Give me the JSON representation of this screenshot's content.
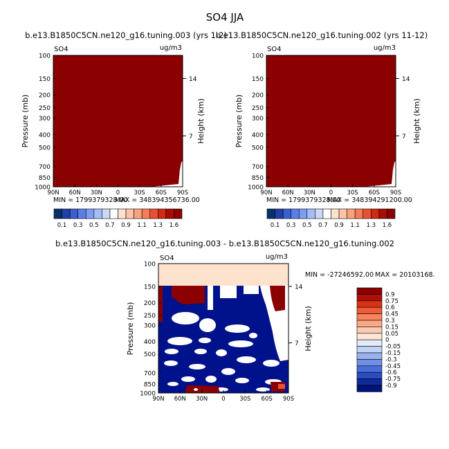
{
  "figure": {
    "title": "SO4 JJA"
  },
  "chart_data": [
    {
      "type": "heatmap",
      "title": "b.e13.B1850C5CN.ne120_g16.tuning.003 (yrs 1-2)",
      "left_label": "SO4",
      "right_label": "ug/m3",
      "xlabel": "",
      "ylabel": "Pressure (mb)",
      "ylabel_right": "Height (km)",
      "x_ticks": [
        "90N",
        "60N",
        "30N",
        "0",
        "30S",
        "60S",
        "90S"
      ],
      "y_ticks": [
        "100",
        "150",
        "200",
        "250",
        "300",
        "400",
        "500",
        "700",
        "850",
        "1000"
      ],
      "y_ticks_right": [
        "14",
        "7"
      ],
      "y_scale": "log",
      "min_label": "MIN = 1799379328.00",
      "max_label": "MAX = 348394356736.00",
      "fill_color": "#8b0000",
      "colorbar_labels": [
        "0.1",
        "0.3",
        "0.5",
        "0.7",
        "0.9",
        "1.1",
        "1.3",
        "1.6"
      ]
    },
    {
      "type": "heatmap",
      "title": "b.e13.B1850C5CN.ne120_g16.tuning.002 (yrs 11-12)",
      "left_label": "SO4",
      "right_label": "ug/m3",
      "xlabel": "",
      "ylabel": "Pressure (mb)",
      "ylabel_right": "Height (km)",
      "x_ticks": [
        "90N",
        "60N",
        "30N",
        "0",
        "30S",
        "60S",
        "90S"
      ],
      "y_ticks": [
        "100",
        "150",
        "200",
        "250",
        "300",
        "400",
        "500",
        "700",
        "850",
        "1000"
      ],
      "y_ticks_right": [
        "14",
        "7"
      ],
      "y_scale": "log",
      "min_label": "MIN = 1799379328.00",
      "max_label": "MAX = 348394291200.00",
      "fill_color": "#8b0000",
      "colorbar_labels": [
        "0.1",
        "0.3",
        "0.5",
        "0.7",
        "0.9",
        "1.1",
        "1.3",
        "1.6"
      ]
    },
    {
      "type": "heatmap",
      "title": "b.e13.B1850C5CN.ne120_g16.tuning.003 - b.e13.B1850C5CN.ne120_g16.tuning.002",
      "left_label": "SO4",
      "right_label": "ug/m3",
      "xlabel": "",
      "ylabel": "Pressure (mb)",
      "ylabel_right": "Height (km)",
      "x_ticks": [
        "90N",
        "60N",
        "30N",
        "0",
        "30S",
        "60S",
        "90S"
      ],
      "y_ticks": [
        "100",
        "150",
        "200",
        "250",
        "300",
        "400",
        "500",
        "700",
        "850",
        "1000"
      ],
      "y_ticks_right": [
        "14",
        "7"
      ],
      "y_scale": "log",
      "min_label": "MIN = -27246592.00",
      "max_label": "MAX = 20103168.",
      "colorbar_labels": [
        "0.9",
        "0.75",
        "0.6",
        "0.45",
        "0.3",
        "0.15",
        "0.05",
        "0",
        "-0.05",
        "-0.15",
        "-0.3",
        "-0.45",
        "-0.6",
        "-0.75",
        "-0.9"
      ]
    }
  ],
  "colorbars": {
    "sequential_colors": [
      "#08306b",
      "#2040a8",
      "#3a5fd0",
      "#5b7fe8",
      "#7d9ef0",
      "#a4bdf5",
      "#cad9f8",
      "#ffffff",
      "#ffe1cf",
      "#fcc4a6",
      "#f9a27c",
      "#f47c56",
      "#e65233",
      "#cf2b14",
      "#a80c05",
      "#8b0000"
    ],
    "diff_colors": [
      "#8b0000",
      "#b01008",
      "#d83214",
      "#ec5c38",
      "#f8845d",
      "#fda882",
      "#fccab0",
      "#fce6d6",
      "#e3eaf8",
      "#c1d2f4",
      "#99b2ee",
      "#6f8fe6",
      "#4a6ed9",
      "#2b4dc4",
      "#12299a",
      "#00137a"
    ],
    "diff_pale_color": "#fde3cd",
    "diff_blue_color": "#00128b",
    "diff_red_color": "#8b0000"
  }
}
